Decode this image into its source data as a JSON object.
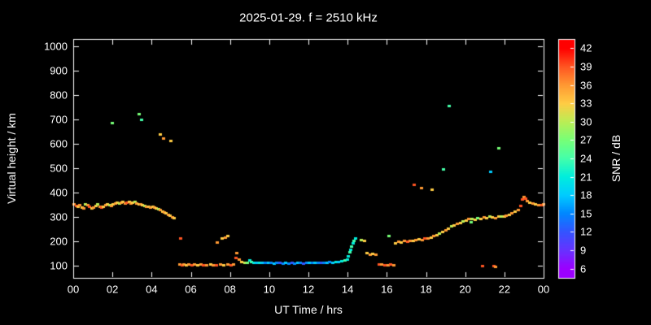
{
  "title": "2025-01-29. f = 2510 kHz",
  "colors": {
    "background": "#000000",
    "foreground": "#ffffff"
  },
  "axes": {
    "xlabel": "UT Time / hrs",
    "ylabel": "Virtual height / km",
    "xlim": [
      0,
      24
    ],
    "ylim": [
      50,
      1030
    ],
    "x_ticks": [
      {
        "v": 0,
        "label": "00"
      },
      {
        "v": 2,
        "label": "02"
      },
      {
        "v": 4,
        "label": "04"
      },
      {
        "v": 6,
        "label": "06"
      },
      {
        "v": 8,
        "label": "08"
      },
      {
        "v": 10,
        "label": "10"
      },
      {
        "v": 12,
        "label": "12"
      },
      {
        "v": 14,
        "label": "14"
      },
      {
        "v": 16,
        "label": "16"
      },
      {
        "v": 18,
        "label": "18"
      },
      {
        "v": 20,
        "label": "20"
      },
      {
        "v": 22,
        "label": "22"
      },
      {
        "v": 24,
        "label": "00"
      }
    ],
    "y_ticks": [
      {
        "v": 100,
        "label": "100"
      },
      {
        "v": 200,
        "label": "200"
      },
      {
        "v": 300,
        "label": "300"
      },
      {
        "v": 400,
        "label": "400"
      },
      {
        "v": 500,
        "label": "500"
      },
      {
        "v": 600,
        "label": "600"
      },
      {
        "v": 700,
        "label": "700"
      },
      {
        "v": 800,
        "label": "800"
      },
      {
        "v": 900,
        "label": "900"
      },
      {
        "v": 1000,
        "label": "1000"
      }
    ]
  },
  "colorbar": {
    "label": "SNR / dB",
    "range": [
      4.5,
      43.5
    ],
    "ticks": [
      6,
      9,
      12,
      15,
      18,
      21,
      24,
      27,
      30,
      33,
      36,
      39,
      42
    ],
    "stops": [
      {
        "v": 6,
        "c": "#9b00ff"
      },
      {
        "v": 9,
        "c": "#6633ff"
      },
      {
        "v": 12,
        "c": "#3355ff"
      },
      {
        "v": 15,
        "c": "#0088ff"
      },
      {
        "v": 18,
        "c": "#00ccff"
      },
      {
        "v": 21,
        "c": "#00eedd"
      },
      {
        "v": 24,
        "c": "#44ffaa"
      },
      {
        "v": 27,
        "c": "#77ff77"
      },
      {
        "v": 30,
        "c": "#bbee55"
      },
      {
        "v": 33,
        "c": "#ffcc44"
      },
      {
        "v": 36,
        "c": "#ff9933"
      },
      {
        "v": 39,
        "c": "#ff5522"
      },
      {
        "v": 42,
        "c": "#ff0000"
      }
    ]
  },
  "chart_data": {
    "type": "scatter",
    "title": "2025-01-29. f = 2510 kHz",
    "xlabel": "UT Time / hrs",
    "ylabel": "Virtual height / km",
    "color_label": "SNR / dB",
    "xlim": [
      0,
      24
    ],
    "ylim": [
      50,
      1030
    ],
    "clim": [
      6,
      42
    ],
    "point_format": "[ut_hours, virtual_height_km, snr_db]",
    "points": [
      [
        0.05,
        352,
        36
      ],
      [
        0.15,
        348,
        39
      ],
      [
        0.25,
        344,
        33
      ],
      [
        0.35,
        350,
        36
      ],
      [
        0.45,
        341,
        33
      ],
      [
        0.55,
        338,
        36
      ],
      [
        0.62,
        352,
        30
      ],
      [
        0.75,
        349,
        36
      ],
      [
        0.85,
        343,
        39
      ],
      [
        0.95,
        336,
        33
      ],
      [
        1.05,
        340,
        36
      ],
      [
        1.15,
        347,
        33
      ],
      [
        1.25,
        352,
        30
      ],
      [
        1.35,
        345,
        36
      ],
      [
        1.45,
        339,
        39
      ],
      [
        1.55,
        342,
        33
      ],
      [
        1.65,
        350,
        36
      ],
      [
        1.75,
        355,
        33
      ],
      [
        1.85,
        351,
        30
      ],
      [
        1.95,
        346,
        36
      ],
      [
        2.05,
        352,
        33
      ],
      [
        2.15,
        357,
        36
      ],
      [
        2.25,
        360,
        33
      ],
      [
        2.35,
        356,
        30
      ],
      [
        2.45,
        359,
        36
      ],
      [
        2.55,
        362,
        33
      ],
      [
        2.65,
        358,
        36
      ],
      [
        2.75,
        361,
        39
      ],
      [
        2.85,
        362,
        33
      ],
      [
        2.95,
        358,
        36
      ],
      [
        3.05,
        361,
        33
      ],
      [
        3.15,
        362,
        30
      ],
      [
        3.25,
        358,
        36
      ],
      [
        3.35,
        355,
        33
      ],
      [
        3.45,
        352,
        36
      ],
      [
        3.55,
        350,
        33
      ],
      [
        3.65,
        348,
        30
      ],
      [
        3.75,
        345,
        36
      ],
      [
        3.85,
        342,
        33
      ],
      [
        3.95,
        340,
        36
      ],
      [
        4.05,
        344,
        33
      ],
      [
        4.15,
        341,
        36
      ],
      [
        4.25,
        337,
        33
      ],
      [
        4.35,
        334,
        30
      ],
      [
        4.45,
        329,
        36
      ],
      [
        4.55,
        324,
        33
      ],
      [
        4.65,
        319,
        36
      ],
      [
        4.75,
        316,
        33
      ],
      [
        4.85,
        311,
        36
      ],
      [
        4.95,
        307,
        33
      ],
      [
        5.05,
        300,
        36
      ],
      [
        5.15,
        296,
        33
      ],
      [
        2.0,
        686,
        27
      ],
      [
        3.35,
        722,
        27
      ],
      [
        3.5,
        701,
        24
      ],
      [
        4.45,
        641,
        33
      ],
      [
        4.6,
        623,
        36
      ],
      [
        5.0,
        612,
        33
      ],
      [
        5.5,
        214,
        39
      ],
      [
        5.45,
        108,
        36
      ],
      [
        5.55,
        105,
        39
      ],
      [
        5.65,
        107,
        36
      ],
      [
        5.78,
        105,
        33
      ],
      [
        5.9,
        106,
        36
      ],
      [
        6.05,
        105,
        39
      ],
      [
        6.2,
        107,
        36
      ],
      [
        6.35,
        105,
        33
      ],
      [
        6.5,
        106,
        36
      ],
      [
        6.65,
        104,
        39
      ],
      [
        6.8,
        105,
        36
      ],
      [
        7.0,
        106,
        33
      ],
      [
        7.15,
        105,
        36
      ],
      [
        7.3,
        104,
        39
      ],
      [
        7.5,
        106,
        36
      ],
      [
        7.7,
        105,
        33
      ],
      [
        7.9,
        107,
        36
      ],
      [
        8.05,
        104,
        39
      ],
      [
        8.2,
        106,
        36
      ],
      [
        7.35,
        198,
        36
      ],
      [
        7.6,
        212,
        33
      ],
      [
        7.78,
        218,
        36
      ],
      [
        7.88,
        222,
        33
      ],
      [
        8.3,
        135,
        39
      ],
      [
        8.36,
        152,
        36
      ],
      [
        8.45,
        128,
        36
      ],
      [
        8.6,
        118,
        33
      ],
      [
        8.75,
        115,
        30
      ],
      [
        8.9,
        113,
        27
      ],
      [
        9.0,
        125,
        21
      ],
      [
        9.1,
        118,
        24
      ],
      [
        9.2,
        114,
        21
      ],
      [
        9.35,
        112,
        18
      ],
      [
        9.5,
        113,
        21
      ],
      [
        9.65,
        115,
        18
      ],
      [
        9.8,
        112,
        15
      ],
      [
        9.95,
        113,
        18
      ],
      [
        10.1,
        112,
        15
      ],
      [
        10.25,
        110,
        18
      ],
      [
        10.4,
        112,
        15
      ],
      [
        10.55,
        113,
        12
      ],
      [
        10.7,
        111,
        15
      ],
      [
        10.85,
        112,
        18
      ],
      [
        11.0,
        110,
        15
      ],
      [
        11.15,
        112,
        12
      ],
      [
        11.3,
        111,
        15
      ],
      [
        11.45,
        113,
        18
      ],
      [
        11.6,
        112,
        15
      ],
      [
        11.75,
        110,
        12
      ],
      [
        11.9,
        112,
        15
      ],
      [
        12.05,
        113,
        18
      ],
      [
        12.2,
        112,
        15
      ],
      [
        12.35,
        114,
        18
      ],
      [
        12.5,
        112,
        15
      ],
      [
        12.65,
        113,
        12
      ],
      [
        12.8,
        115,
        15
      ],
      [
        12.95,
        114,
        18
      ],
      [
        13.1,
        116,
        15
      ],
      [
        13.25,
        115,
        18
      ],
      [
        13.4,
        117,
        21
      ],
      [
        13.55,
        118,
        18
      ],
      [
        13.7,
        120,
        21
      ],
      [
        13.85,
        122,
        24
      ],
      [
        14.0,
        126,
        21
      ],
      [
        14.05,
        140,
        21
      ],
      [
        14.1,
        156,
        24
      ],
      [
        14.15,
        168,
        21
      ],
      [
        14.2,
        181,
        24
      ],
      [
        14.27,
        193,
        21
      ],
      [
        14.33,
        205,
        24
      ],
      [
        14.4,
        212,
        21
      ],
      [
        14.7,
        208,
        30
      ],
      [
        14.85,
        202,
        33
      ],
      [
        15.0,
        152,
        33
      ],
      [
        15.15,
        148,
        36
      ],
      [
        15.3,
        151,
        33
      ],
      [
        15.45,
        147,
        36
      ],
      [
        15.6,
        108,
        39
      ],
      [
        15.75,
        106,
        36
      ],
      [
        15.9,
        105,
        39
      ],
      [
        16.05,
        104,
        36
      ],
      [
        16.2,
        106,
        39
      ],
      [
        16.35,
        103,
        36
      ],
      [
        16.1,
        222,
        27
      ],
      [
        16.45,
        194,
        33
      ],
      [
        16.6,
        200,
        36
      ],
      [
        16.75,
        198,
        33
      ],
      [
        16.9,
        202,
        36
      ],
      [
        17.05,
        200,
        39
      ],
      [
        17.2,
        205,
        36
      ],
      [
        17.35,
        203,
        33
      ],
      [
        17.5,
        207,
        36
      ],
      [
        17.65,
        210,
        33
      ],
      [
        17.8,
        208,
        36
      ],
      [
        17.95,
        212,
        39
      ],
      [
        18.1,
        215,
        36
      ],
      [
        18.25,
        218,
        33
      ],
      [
        18.4,
        223,
        36
      ],
      [
        18.55,
        228,
        33
      ],
      [
        18.7,
        235,
        30
      ],
      [
        18.85,
        241,
        33
      ],
      [
        19.0,
        248,
        36
      ],
      [
        19.15,
        255,
        33
      ],
      [
        19.3,
        262,
        30
      ],
      [
        19.45,
        268,
        33
      ],
      [
        19.6,
        272,
        36
      ],
      [
        19.75,
        278,
        33
      ],
      [
        19.9,
        283,
        30
      ],
      [
        17.4,
        432,
        39
      ],
      [
        17.78,
        420,
        36
      ],
      [
        18.3,
        412,
        33
      ],
      [
        18.9,
        498,
        24
      ],
      [
        19.2,
        758,
        24
      ],
      [
        21.3,
        488,
        18
      ],
      [
        21.7,
        582,
        27
      ],
      [
        20.05,
        288,
        33
      ],
      [
        20.2,
        292,
        36
      ],
      [
        20.35,
        294,
        30
      ],
      [
        20.5,
        290,
        33
      ],
      [
        20.65,
        297,
        27
      ],
      [
        20.8,
        295,
        33
      ],
      [
        20.95,
        299,
        36
      ],
      [
        21.1,
        298,
        33
      ],
      [
        21.25,
        302,
        30
      ],
      [
        21.4,
        300,
        33
      ],
      [
        21.55,
        298,
        36
      ],
      [
        21.7,
        303,
        33
      ],
      [
        21.85,
        305,
        30
      ],
      [
        20.3,
        280,
        27
      ],
      [
        20.9,
        100,
        39
      ],
      [
        21.45,
        100,
        39
      ],
      [
        21.55,
        98,
        36
      ],
      [
        22.0,
        302,
        33
      ],
      [
        22.1,
        306,
        36
      ],
      [
        22.25,
        310,
        33
      ],
      [
        22.4,
        316,
        36
      ],
      [
        22.55,
        322,
        33
      ],
      [
        22.7,
        331,
        36
      ],
      [
        22.82,
        346,
        39
      ],
      [
        22.9,
        372,
        39
      ],
      [
        23.0,
        382,
        36
      ],
      [
        23.08,
        376,
        39
      ],
      [
        23.18,
        368,
        36
      ],
      [
        23.3,
        361,
        33
      ],
      [
        23.45,
        356,
        36
      ],
      [
        23.6,
        352,
        33
      ],
      [
        23.75,
        349,
        36
      ],
      [
        23.9,
        351,
        39
      ],
      [
        23.98,
        353,
        36
      ]
    ]
  }
}
